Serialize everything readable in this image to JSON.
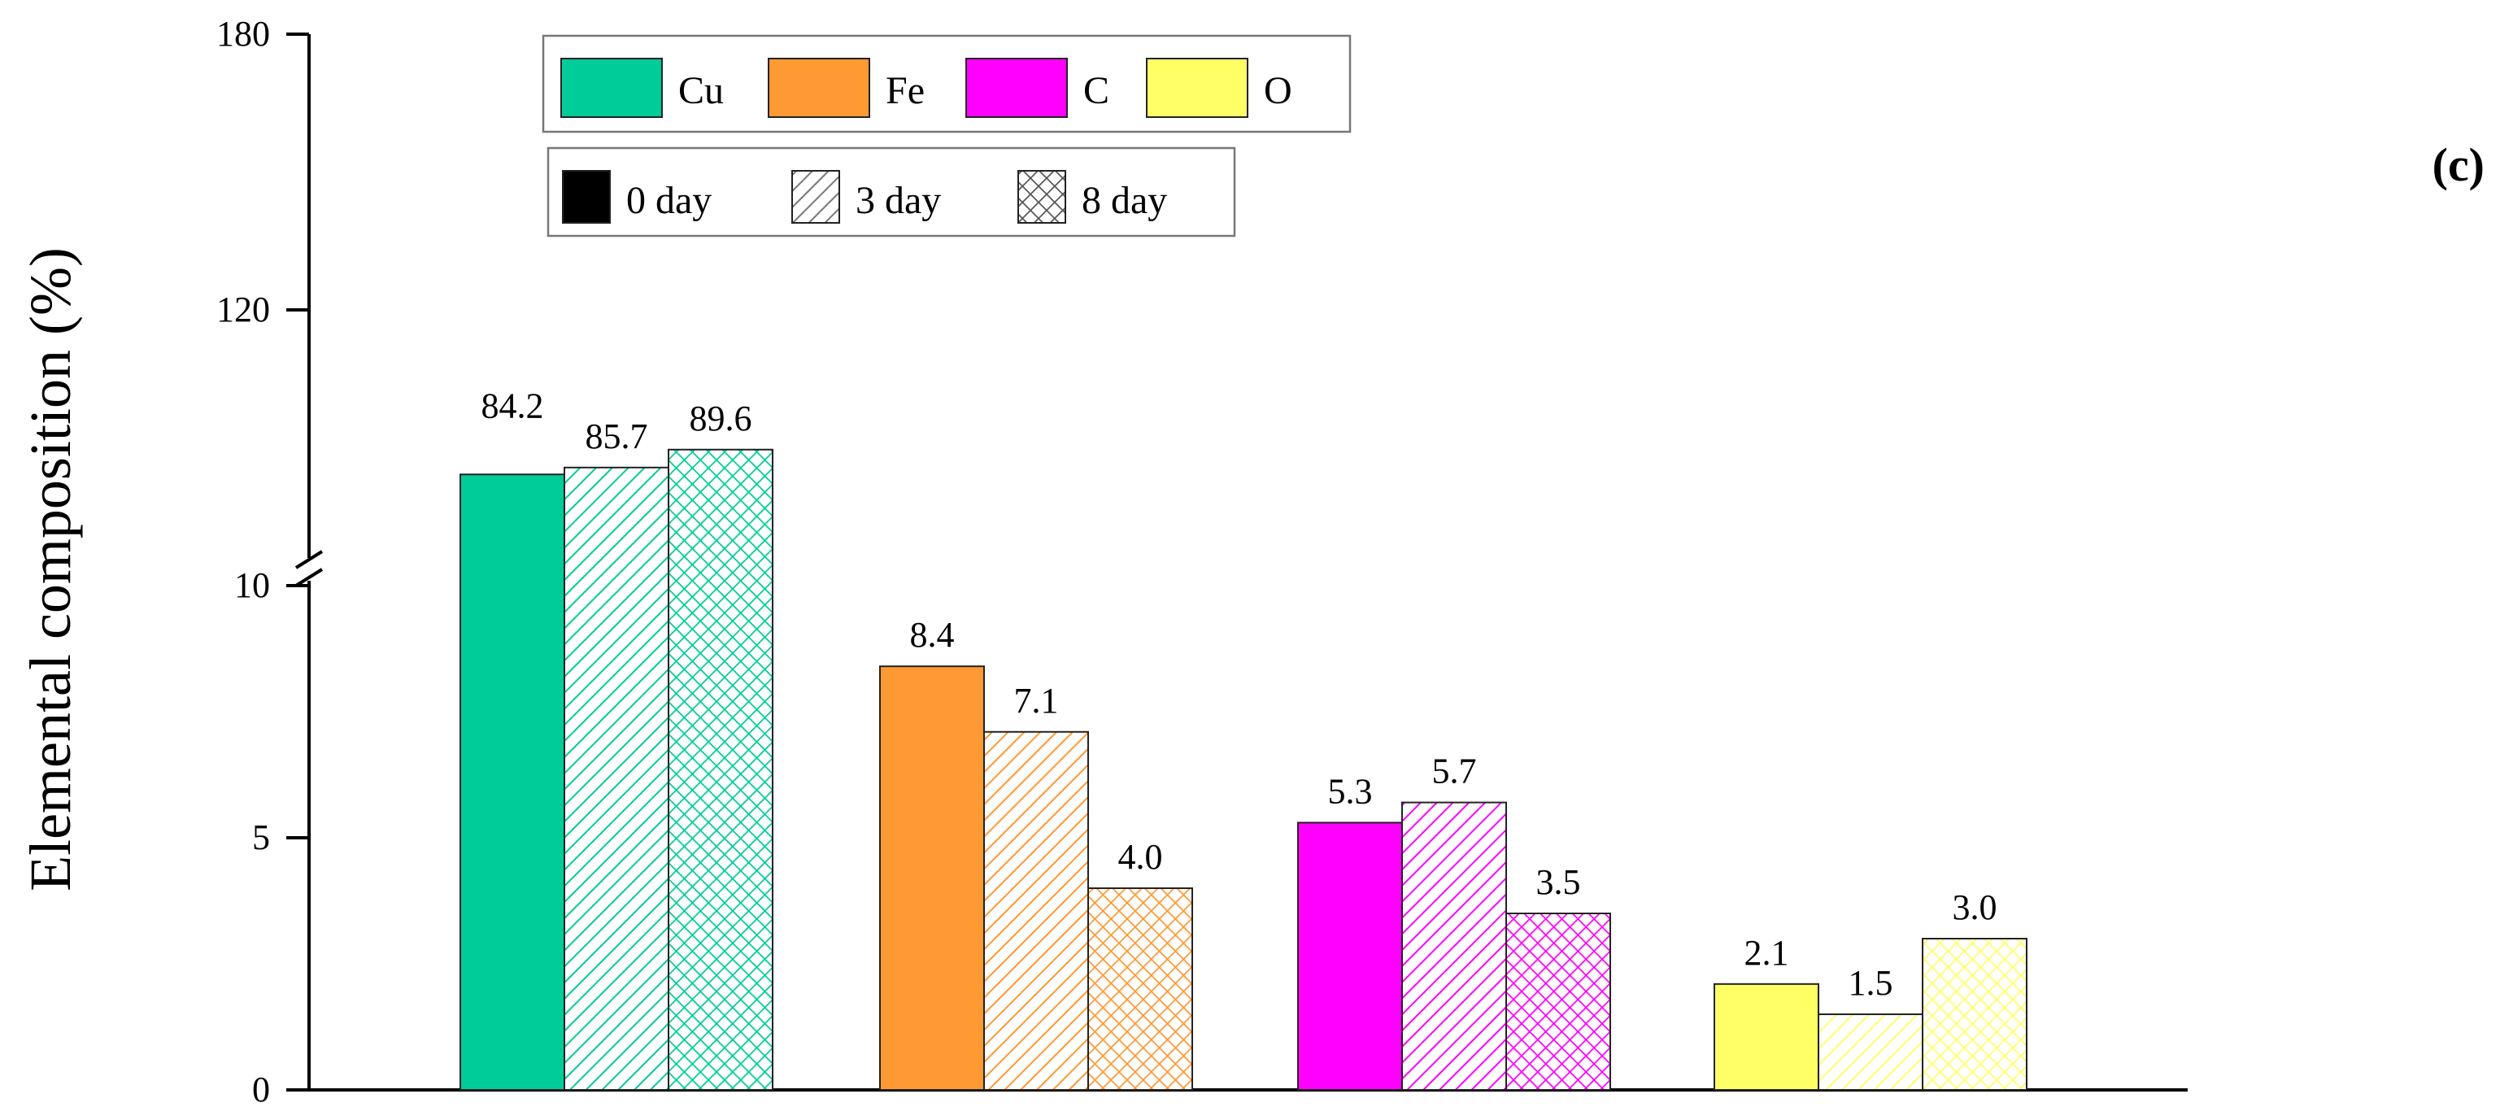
{
  "panel_label": "(c)",
  "chart_data": {
    "type": "bar",
    "title": "",
    "xlabel": "",
    "ylabel": "Elemental composition (%)",
    "axis_break": {
      "lower_range": [
        0,
        10
      ],
      "upper_range": [
        60,
        180
      ],
      "lower_ticks": [
        "0",
        "5",
        "10"
      ],
      "upper_ticks": [
        "120",
        "180"
      ]
    },
    "categories": [
      "Cu",
      "Fe",
      "C",
      "O"
    ],
    "category_colors": {
      "Cu": "#00CC99",
      "Fe": "#FF9933",
      "C": "#FF00FF",
      "O": "#FFFF66"
    },
    "series": [
      {
        "name": "0 day",
        "pattern": "solid",
        "values": [
          84.2,
          8.4,
          5.3,
          2.1
        ]
      },
      {
        "name": "3 day",
        "pattern": "diagonal-hatch",
        "values": [
          85.7,
          7.1,
          5.7,
          1.5
        ]
      },
      {
        "name": "8 day",
        "pattern": "crosshatch",
        "values": [
          89.6,
          4.0,
          3.5,
          3.0
        ]
      }
    ],
    "data_labels": [
      [
        "84.2",
        "85.7",
        "89.6"
      ],
      [
        "8.4",
        "7.1",
        "4.0"
      ],
      [
        "5.3",
        "5.7",
        "3.5"
      ],
      [
        "2.1",
        "1.5",
        "3.0"
      ]
    ],
    "legend_elements": {
      "position": "top-left",
      "entries": [
        "Cu",
        "Fe",
        "C",
        "O"
      ]
    },
    "legend_series": {
      "position": "top-left",
      "entries": [
        "0 day",
        "3 day",
        "8 day"
      ]
    },
    "grid": false
  }
}
